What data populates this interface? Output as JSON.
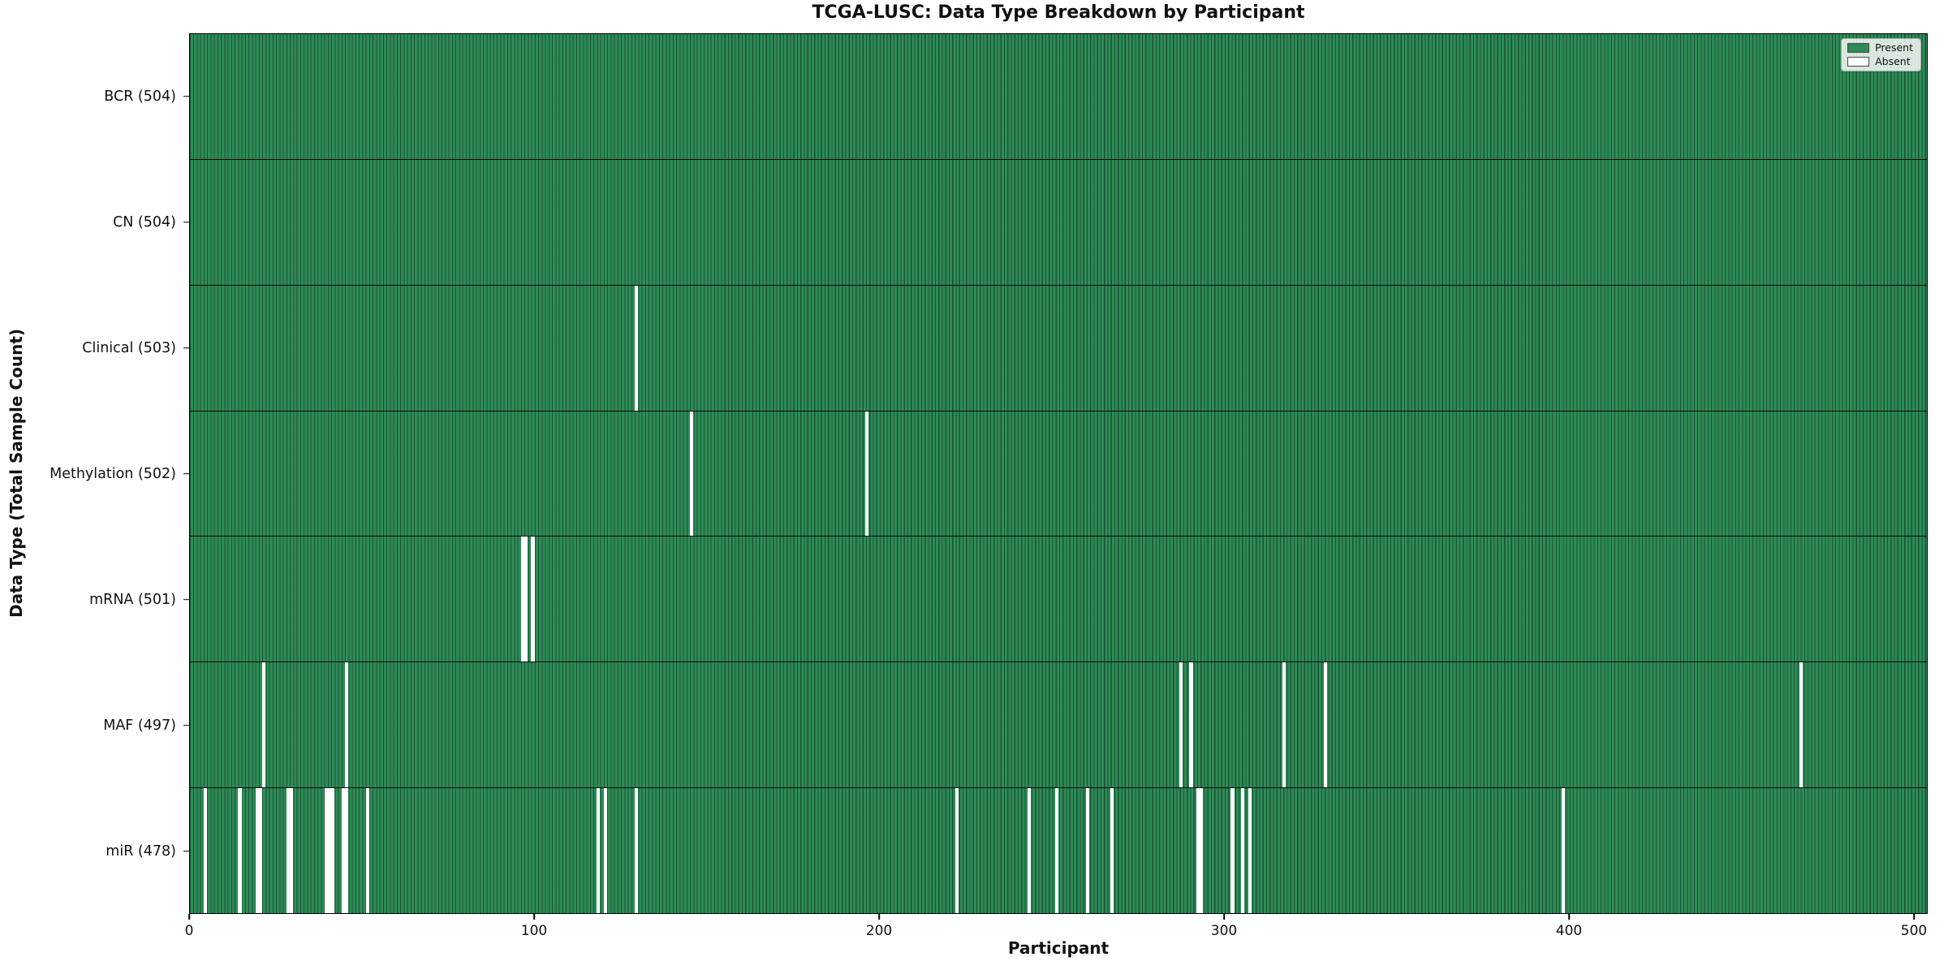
{
  "chart_data": {
    "type": "heatmap",
    "title": "TCGA-LUSC: Data Type Breakdown by Participant",
    "xlabel": "Participant",
    "ylabel": "Data Type (Total Sample Count)",
    "n_participants": 504,
    "xlim": [
      0,
      504
    ],
    "x_ticks": [
      0,
      100,
      200,
      300,
      400,
      500
    ],
    "grid": false,
    "legend_position": "upper right",
    "legend": [
      {
        "label": "Present",
        "color": "#2e8b57"
      },
      {
        "label": "Absent",
        "color": "#ffffff"
      }
    ],
    "colors": {
      "present": "#2e8b57",
      "absent": "#ffffff",
      "bar_edge": "#123d26",
      "row_divider": "#0a0a0a",
      "axis": "#000000"
    },
    "rows": [
      {
        "label": "BCR (504)",
        "data_type": "BCR",
        "total": 504,
        "absent_participants": []
      },
      {
        "label": "CN (504)",
        "data_type": "CN",
        "total": 504,
        "absent_participants": []
      },
      {
        "label": "Clinical (503)",
        "data_type": "Clinical",
        "total": 503,
        "absent_participants": [
          129
        ]
      },
      {
        "label": "Methylation (502)",
        "data_type": "Methylation",
        "total": 502,
        "absent_participants": [
          145,
          196
        ]
      },
      {
        "label": "mRNA (501)",
        "data_type": "mRNA",
        "total": 501,
        "absent_participants": [
          96,
          97,
          99
        ]
      },
      {
        "label": "MAF (497)",
        "data_type": "MAF",
        "total": 497,
        "absent_participants": [
          21,
          45,
          287,
          290,
          317,
          329,
          467
        ]
      },
      {
        "label": "miR (478)",
        "data_type": "miR",
        "total": 478,
        "absent_participants": [
          4,
          14,
          19,
          20,
          28,
          29,
          39,
          40,
          41,
          44,
          45,
          51,
          118,
          120,
          129,
          222,
          243,
          251,
          260,
          267,
          292,
          293,
          302,
          305,
          307,
          398
        ]
      }
    ]
  }
}
